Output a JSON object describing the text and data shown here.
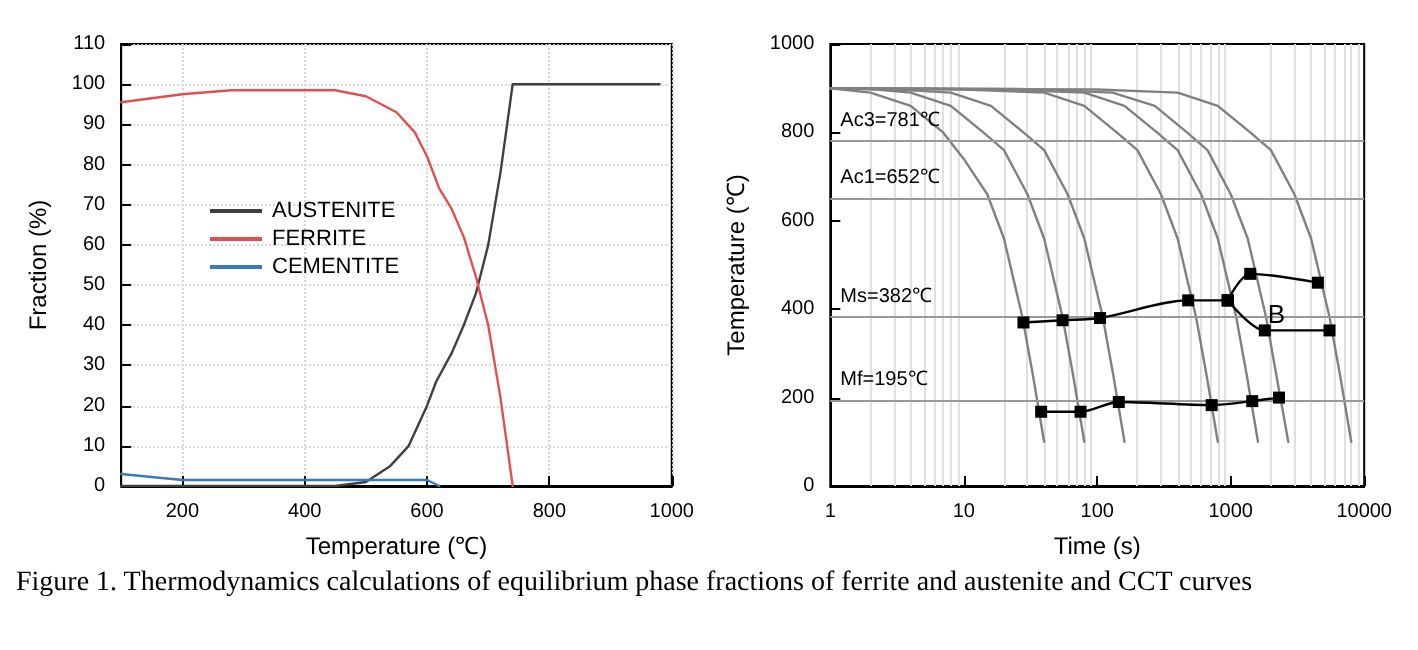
{
  "chart_data": [
    {
      "type": "line",
      "xlabel": "Temperature (℃)",
      "ylabel": "Fraction (%)",
      "xlim": [
        100,
        1000
      ],
      "xticks": [
        200,
        400,
        600,
        800,
        1000
      ],
      "ylim": [
        0,
        110
      ],
      "yticks": [
        0,
        10,
        20,
        30,
        40,
        50,
        60,
        70,
        80,
        90,
        100,
        110
      ],
      "grid": true,
      "legend": "left",
      "marker": "none",
      "series": [
        {
          "name": "AUSTENITE",
          "color": "#404040",
          "x": [
            100,
            200,
            300,
            400,
            450,
            500,
            540,
            570,
            600,
            615,
            640,
            660,
            680,
            700,
            720,
            740,
            980
          ],
          "values": [
            0,
            0,
            0,
            0,
            0,
            1,
            5,
            10,
            20,
            26,
            33,
            40,
            48,
            60,
            78,
            100,
            100
          ]
        },
        {
          "name": "FERRITE",
          "color": "#e05050",
          "x": [
            100,
            200,
            280,
            450,
            500,
            550,
            580,
            600,
            620,
            640,
            660,
            680,
            700,
            720,
            740
          ],
          "values": [
            95.5,
            97.5,
            98.5,
            98.5,
            97,
            93,
            88,
            82,
            74,
            69,
            62,
            52,
            40,
            22,
            0
          ]
        },
        {
          "name": "CEMENTITE",
          "color": "#3a7ab8",
          "x": [
            100,
            200,
            600,
            620
          ],
          "values": [
            3,
            1.5,
            1.5,
            0
          ]
        }
      ]
    },
    {
      "type": "line",
      "xlabel": "Time (s)",
      "ylabel": "Temperature (℃)",
      "log": "x",
      "xlim": [
        1,
        10000
      ],
      "xticks": [
        1,
        10,
        100,
        1000,
        10000
      ],
      "ylim": [
        0,
        1000
      ],
      "yticks": [
        0,
        200,
        400,
        600,
        800,
        1000
      ],
      "grid": "x",
      "marker": "none",
      "ref_lines": [
        {
          "axis": "y",
          "value": 781,
          "label": "Ac3=781℃",
          "color": "#999999"
        },
        {
          "axis": "y",
          "value": 652,
          "label": "Ac1=652℃",
          "color": "#999999"
        },
        {
          "axis": "y",
          "value": 382,
          "label": "Ms=382℃",
          "color": "#999999"
        },
        {
          "axis": "y",
          "value": 195,
          "label": "Mf=195℃",
          "color": "#999999"
        }
      ],
      "annotations": [
        {
          "text": "B",
          "x": 2200,
          "y": 390
        },
        "Figure 1. Thermodynamics calculations of equilibrium phase fractions of ferrite and austenite  and CCT curves"
      ],
      "series": [
        {
          "color": "#808080",
          "x": [
            1,
            2,
            4,
            7,
            10,
            15,
            20,
            27.5,
            33,
            40
          ],
          "values": [
            900,
            890,
            860,
            800,
            740,
            660,
            560,
            382,
            250,
            100
          ]
        },
        {
          "color": "#808080",
          "x": [
            1,
            2,
            4,
            8,
            14,
            20,
            30,
            40,
            55,
            66,
            80
          ],
          "values": [
            900,
            898,
            890,
            860,
            800,
            760,
            660,
            560,
            382,
            250,
            100
          ]
        },
        {
          "color": "#808080",
          "x": [
            1,
            4,
            8,
            16,
            28,
            40,
            60,
            80,
            110,
            132,
            160
          ],
          "values": [
            900,
            895,
            890,
            860,
            800,
            760,
            660,
            560,
            382,
            250,
            100
          ]
        },
        {
          "color": "#808080",
          "x": [
            1,
            10,
            40,
            80,
            140,
            200,
            300,
            400,
            550,
            660,
            800
          ],
          "values": [
            900,
            897,
            890,
            860,
            800,
            760,
            660,
            560,
            382,
            250,
            100
          ]
        },
        {
          "color": "#808080",
          "x": [
            1,
            20,
            80,
            160,
            280,
            400,
            600,
            800,
            1100,
            1320,
            1600
          ],
          "values": [
            900,
            897,
            890,
            860,
            800,
            760,
            660,
            560,
            382,
            250,
            100
          ]
        },
        {
          "color": "#808080",
          "x": [
            1,
            30,
            130,
            270,
            470,
            670,
            1000,
            1340,
            1840,
            2200,
            2700
          ],
          "values": [
            900,
            898,
            890,
            860,
            800,
            760,
            660,
            560,
            382,
            250,
            100
          ]
        },
        {
          "color": "#808080",
          "x": [
            1,
            100,
            400,
            800,
            1400,
            2000,
            3000,
            4000,
            5500,
            6600,
            8000
          ],
          "values": [
            900,
            897,
            890,
            860,
            800,
            760,
            660,
            560,
            382,
            250,
            100
          ]
        },
        {
          "color": "#000000",
          "marker": "square",
          "x": [
            28,
            55,
            105,
            480,
            950
          ],
          "values": [
            370,
            375,
            380,
            420,
            420
          ]
        },
        {
          "color": "#000000",
          "marker": "square",
          "x": [
            950,
            1400,
            4500
          ],
          "values": [
            420,
            480,
            460
          ]
        },
        {
          "color": "#000000",
          "marker": "square",
          "x": [
            950,
            1800,
            5500
          ],
          "values": [
            420,
            352,
            352
          ]
        },
        {
          "color": "#000000",
          "marker": "square",
          "x": [
            38,
            75,
            145,
            720,
            1450,
            2300
          ],
          "values": [
            168,
            168,
            190,
            183,
            192,
            200
          ]
        }
      ]
    }
  ]
}
